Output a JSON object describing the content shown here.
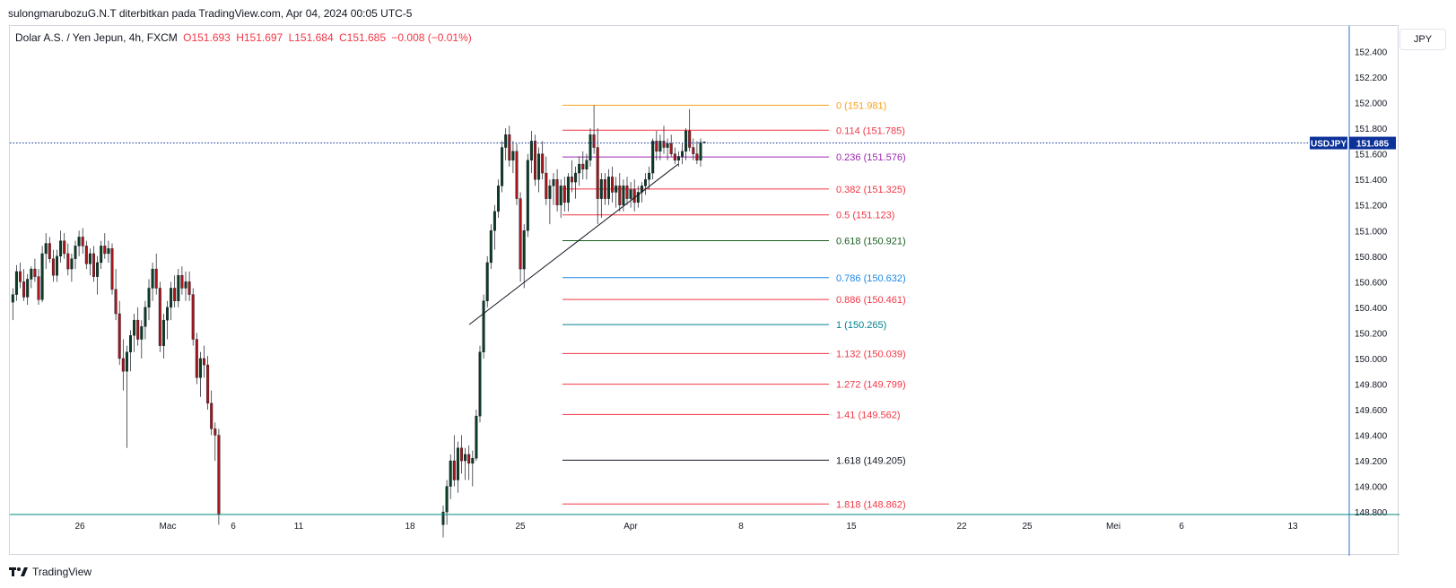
{
  "caption": "sulongmarubozuG.N.T diterbitkan pada TradingView.com, Apr 04, 2024 00:05 UTC-5",
  "legend": {
    "symbol": "Dolar A.S. / Yen Jepun, 4h, FXCM",
    "open": "O151.693",
    "high": "H151.697",
    "low": "L151.684",
    "close": "C151.685",
    "change": "−0.008 (−0.01%)"
  },
  "currency_button": "JPY",
  "price_badge": {
    "symbol": "USDJPY",
    "price": "151.685",
    "color": "#0c3299"
  },
  "logo_text": "TradingView",
  "chart_data": {
    "type": "candlestick",
    "title": "",
    "y_ticks": [
      "152.400",
      "152.200",
      "152.000",
      "151.800",
      "151.600",
      "151.400",
      "151.200",
      "151.000",
      "150.800",
      "150.600",
      "150.400",
      "150.200",
      "150.000",
      "149.800",
      "149.600",
      "149.400",
      "149.200",
      "149.000",
      "148.800"
    ],
    "ylim": [
      148.78,
      152.6
    ],
    "x_ticks": [
      "26",
      "Mac",
      "6",
      "11",
      "18",
      "25",
      "Apr",
      "8",
      "15",
      "22",
      "25",
      "Mei",
      "6",
      "13"
    ],
    "current_price": 151.685,
    "up_color": "#0a3d24",
    "down_color": "#a8161a",
    "fib_levels": [
      {
        "label": "0 (151.981)",
        "value": 151.981,
        "color": "#f7a21b"
      },
      {
        "label": "0.114 (151.785)",
        "value": 151.785,
        "color": "#f23645"
      },
      {
        "label": "0.236 (151.576)",
        "value": 151.576,
        "color": "#9c27b0"
      },
      {
        "label": "0.382 (151.325)",
        "value": 151.325,
        "color": "#f23645"
      },
      {
        "label": "0.5 (151.123)",
        "value": 151.123,
        "color": "#f23645"
      },
      {
        "label": "0.618 (150.921)",
        "value": 150.921,
        "color": "#1b5e20"
      },
      {
        "label": "0.786 (150.632)",
        "value": 150.632,
        "color": "#1e88e5"
      },
      {
        "label": "0.886 (150.461)",
        "value": 150.461,
        "color": "#f23645"
      },
      {
        "label": "1 (150.265)",
        "value": 150.265,
        "color": "#00838f"
      },
      {
        "label": "1.132 (150.039)",
        "value": 150.039,
        "color": "#f23645"
      },
      {
        "label": "1.272 (149.799)",
        "value": 149.799,
        "color": "#f23645"
      },
      {
        "label": "1.41 (149.562)",
        "value": 149.562,
        "color": "#f23645"
      },
      {
        "label": "1.618 (149.205)",
        "value": 149.205,
        "color": "#131722"
      },
      {
        "label": "1.818 (148.862)",
        "value": 148.862,
        "color": "#f23645"
      }
    ],
    "trendline": [
      [
        0,
        150.265
      ],
      [
        1,
        151.52
      ]
    ],
    "candles": [
      [
        150.44,
        150.55,
        150.3,
        150.5
      ],
      [
        150.5,
        150.73,
        150.45,
        150.68
      ],
      [
        150.68,
        150.75,
        150.55,
        150.6
      ],
      [
        150.6,
        150.7,
        150.45,
        150.48
      ],
      [
        150.48,
        150.66,
        150.42,
        150.62
      ],
      [
        150.62,
        150.72,
        150.55,
        150.7
      ],
      [
        150.7,
        150.78,
        150.6,
        150.64
      ],
      [
        150.64,
        150.7,
        150.42,
        150.46
      ],
      [
        150.46,
        150.88,
        150.44,
        150.82
      ],
      [
        150.82,
        150.98,
        150.7,
        150.9
      ],
      [
        150.9,
        150.95,
        150.75,
        150.78
      ],
      [
        150.78,
        150.85,
        150.6,
        150.65
      ],
      [
        150.65,
        150.85,
        150.6,
        150.8
      ],
      [
        150.8,
        151.0,
        150.75,
        150.92
      ],
      [
        150.92,
        150.98,
        150.78,
        150.82
      ],
      [
        150.82,
        150.9,
        150.65,
        150.7
      ],
      [
        150.7,
        150.82,
        150.6,
        150.78
      ],
      [
        150.78,
        150.92,
        150.7,
        150.88
      ],
      [
        150.88,
        151.0,
        150.8,
        150.95
      ],
      [
        150.95,
        151.02,
        150.82,
        150.88
      ],
      [
        150.88,
        150.92,
        150.7,
        150.74
      ],
      [
        150.74,
        150.86,
        150.65,
        150.82
      ],
      [
        150.82,
        150.88,
        150.6,
        150.64
      ],
      [
        150.64,
        150.8,
        150.5,
        150.75
      ],
      [
        150.75,
        150.92,
        150.7,
        150.88
      ],
      [
        150.88,
        150.98,
        150.78,
        150.82
      ],
      [
        150.82,
        150.92,
        150.75,
        150.86
      ],
      [
        150.86,
        150.9,
        150.5,
        150.54
      ],
      [
        150.54,
        150.7,
        150.3,
        150.35
      ],
      [
        150.35,
        150.45,
        149.95,
        150.0
      ],
      [
        150.0,
        150.15,
        149.75,
        149.9
      ],
      [
        149.9,
        150.1,
        149.3,
        150.05
      ],
      [
        150.05,
        150.22,
        149.9,
        150.18
      ],
      [
        150.18,
        150.35,
        150.05,
        150.3
      ],
      [
        150.3,
        150.4,
        150.1,
        150.15
      ],
      [
        150.15,
        150.3,
        150.0,
        150.25
      ],
      [
        150.25,
        150.45,
        150.15,
        150.4
      ],
      [
        150.4,
        150.62,
        150.3,
        150.55
      ],
      [
        150.55,
        150.75,
        150.45,
        150.7
      ],
      [
        150.7,
        150.82,
        150.5,
        150.55
      ],
      [
        150.55,
        150.6,
        150.05,
        150.1
      ],
      [
        150.1,
        150.35,
        150.0,
        150.3
      ],
      [
        150.3,
        150.45,
        150.15,
        150.4
      ],
      [
        150.4,
        150.6,
        150.3,
        150.55
      ],
      [
        150.55,
        150.65,
        150.4,
        150.45
      ],
      [
        150.45,
        150.7,
        150.4,
        150.65
      ],
      [
        150.65,
        150.72,
        150.5,
        150.55
      ],
      [
        150.55,
        150.68,
        150.45,
        150.6
      ],
      [
        150.6,
        150.68,
        150.45,
        150.5
      ],
      [
        150.5,
        150.55,
        150.1,
        150.15
      ],
      [
        150.15,
        150.2,
        149.8,
        149.85
      ],
      [
        149.85,
        150.05,
        149.7,
        150.0
      ],
      [
        150.0,
        150.1,
        149.85,
        149.95
      ],
      [
        149.95,
        150.02,
        149.6,
        149.65
      ],
      [
        149.65,
        149.75,
        149.4,
        149.45
      ],
      [
        149.45,
        149.5,
        149.2,
        149.4
      ],
      [
        149.4,
        149.45,
        148.7,
        148.78
      ],
      null,
      null,
      null,
      null,
      null,
      null,
      null,
      null,
      null,
      null,
      null,
      null,
      null,
      null,
      null,
      null,
      null,
      null,
      null,
      null,
      null,
      null,
      null,
      null,
      null,
      null,
      null,
      null,
      null,
      null,
      null,
      null,
      null,
      null,
      null,
      null,
      null,
      null,
      null,
      null,
      null,
      null,
      null,
      null,
      null,
      null,
      null,
      null,
      null,
      null,
      null,
      null,
      null,
      null,
      null,
      null,
      null,
      null,
      null,
      null,
      [
        148.7,
        148.85,
        148.6,
        148.8
      ],
      [
        148.8,
        149.05,
        148.7,
        149.0
      ],
      [
        149.0,
        149.25,
        148.9,
        149.2
      ],
      [
        149.2,
        149.4,
        149.0,
        149.05
      ],
      [
        149.05,
        149.35,
        148.95,
        149.3
      ],
      [
        149.3,
        149.4,
        149.1,
        149.2
      ],
      [
        149.2,
        149.3,
        149.05,
        149.25
      ],
      [
        149.25,
        149.32,
        149.05,
        149.18
      ],
      [
        149.18,
        149.28,
        149.0,
        149.22
      ],
      [
        149.22,
        149.6,
        149.2,
        149.55
      ],
      [
        149.55,
        150.1,
        149.5,
        150.05
      ],
      [
        150.05,
        150.5,
        150.0,
        150.45
      ],
      [
        150.45,
        150.8,
        150.4,
        150.75
      ],
      [
        150.75,
        151.05,
        150.7,
        151.0
      ],
      [
        151.0,
        151.2,
        150.85,
        151.15
      ],
      [
        151.15,
        151.4,
        151.1,
        151.35
      ],
      [
        151.35,
        151.7,
        151.3,
        151.65
      ],
      [
        151.65,
        151.8,
        151.55,
        151.75
      ],
      [
        151.75,
        151.82,
        151.5,
        151.55
      ],
      [
        151.55,
        151.7,
        151.45,
        151.62
      ],
      [
        151.62,
        151.68,
        151.2,
        151.25
      ],
      [
        151.25,
        151.3,
        150.6,
        150.7
      ],
      [
        150.7,
        151.05,
        150.55,
        151.0
      ],
      [
        151.0,
        151.6,
        150.95,
        151.55
      ],
      [
        151.55,
        151.78,
        151.45,
        151.7
      ],
      [
        151.7,
        151.75,
        151.35,
        151.4
      ],
      [
        151.4,
        151.65,
        151.3,
        151.6
      ],
      [
        151.6,
        151.7,
        151.4,
        151.45
      ],
      [
        151.45,
        151.58,
        151.2,
        151.25
      ],
      [
        151.25,
        151.4,
        151.05,
        151.35
      ],
      [
        151.35,
        151.45,
        151.2,
        151.4
      ],
      [
        151.4,
        151.48,
        151.15,
        151.2
      ],
      [
        151.2,
        151.4,
        151.1,
        151.35
      ],
      [
        151.35,
        151.42,
        151.15,
        151.22
      ],
      [
        151.22,
        151.45,
        151.15,
        151.42
      ],
      [
        151.42,
        151.55,
        151.3,
        151.38
      ],
      [
        151.38,
        151.5,
        151.25,
        151.45
      ],
      [
        151.45,
        151.58,
        151.35,
        151.52
      ],
      [
        151.52,
        151.62,
        151.4,
        151.48
      ],
      [
        151.48,
        151.6,
        151.4,
        151.55
      ],
      [
        151.55,
        151.8,
        151.5,
        151.75
      ],
      [
        151.75,
        151.98,
        151.6,
        151.65
      ],
      [
        151.65,
        151.8,
        151.05,
        151.25
      ],
      [
        151.25,
        151.45,
        151.1,
        151.4
      ],
      [
        151.4,
        151.45,
        151.2,
        151.25
      ],
      [
        151.25,
        151.48,
        151.2,
        151.42
      ],
      [
        151.42,
        151.5,
        151.22,
        151.3
      ],
      [
        151.3,
        151.42,
        151.18,
        151.35
      ],
      [
        151.35,
        151.45,
        151.15,
        151.2
      ],
      [
        151.2,
        151.4,
        151.15,
        151.35
      ],
      [
        151.35,
        151.42,
        151.2,
        151.25
      ],
      [
        151.25,
        151.38,
        151.18,
        151.32
      ],
      [
        151.32,
        151.4,
        151.15,
        151.22
      ],
      [
        151.22,
        151.35,
        151.18,
        151.3
      ],
      [
        151.3,
        151.38,
        151.22,
        151.35
      ],
      [
        151.35,
        151.45,
        151.28,
        151.4
      ],
      [
        151.4,
        151.5,
        151.32,
        151.45
      ],
      [
        151.45,
        151.72,
        151.4,
        151.7
      ],
      [
        151.7,
        151.78,
        151.55,
        151.62
      ],
      [
        151.62,
        151.75,
        151.55,
        151.7
      ],
      [
        151.7,
        151.82,
        151.6,
        151.65
      ],
      [
        151.65,
        151.72,
        151.55,
        151.68
      ],
      [
        151.68,
        151.75,
        151.58,
        151.6
      ],
      [
        151.6,
        151.65,
        151.52,
        151.55
      ],
      [
        151.55,
        151.62,
        151.5,
        151.58
      ],
      [
        151.58,
        151.68,
        151.52,
        151.62
      ],
      [
        151.62,
        151.8,
        151.55,
        151.78
      ],
      [
        151.78,
        151.95,
        151.62,
        151.65
      ],
      [
        151.65,
        151.72,
        151.55,
        151.6
      ],
      [
        151.6,
        151.7,
        151.52,
        151.55
      ],
      [
        151.55,
        151.72,
        151.5,
        151.69
      ],
      [
        151.693,
        151.697,
        151.684,
        151.685
      ]
    ]
  }
}
